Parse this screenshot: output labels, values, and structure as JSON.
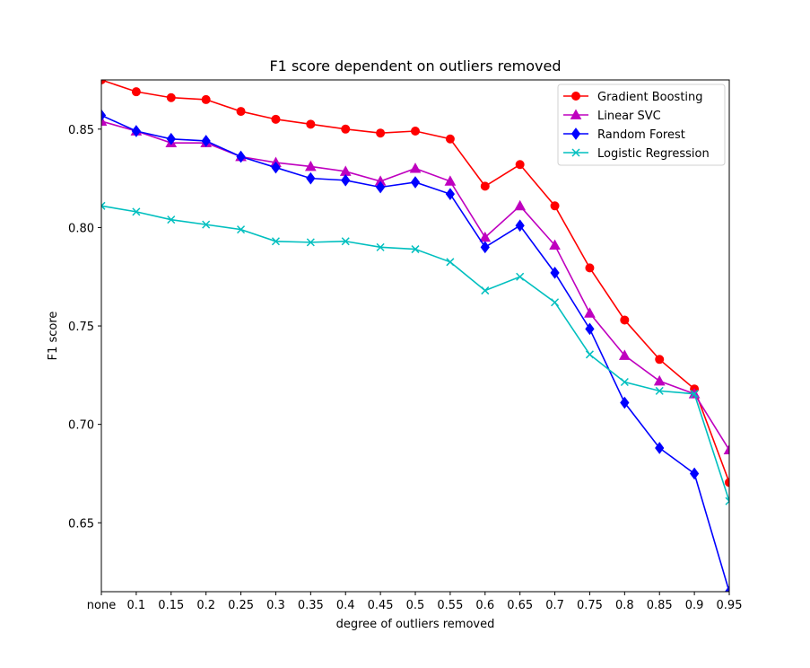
{
  "chart_data": {
    "type": "line",
    "title": "F1 score dependent on outliers removed",
    "xlabel": "degree of outliers removed",
    "ylabel": "F1 score",
    "categories": [
      "none",
      "0.1",
      "0.15",
      "0.2",
      "0.25",
      "0.3",
      "0.35",
      "0.4",
      "0.45",
      "0.5",
      "0.55",
      "0.6",
      "0.65",
      "0.7",
      "0.75",
      "0.8",
      "0.85",
      "0.9",
      "0.95"
    ],
    "ylim": [
      0.615,
      0.875
    ],
    "yticks": [
      "0.65",
      "0.70",
      "0.75",
      "0.80",
      "0.85"
    ],
    "ytick_values": [
      0.65,
      0.7,
      0.75,
      0.8,
      0.85
    ],
    "legend_position": "top-right",
    "grid": false,
    "series": [
      {
        "name": "Gradient Boosting",
        "color": "#ff0000",
        "marker": "circle",
        "values": [
          0.875,
          0.869,
          0.866,
          0.865,
          0.859,
          0.855,
          0.8525,
          0.85,
          0.848,
          0.849,
          0.845,
          0.821,
          0.832,
          0.811,
          0.7795,
          0.753,
          0.733,
          0.718,
          0.6705
        ]
      },
      {
        "name": "Linear SVC",
        "color": "#bf00bf",
        "marker": "triangle",
        "values": [
          0.854,
          0.849,
          0.843,
          0.843,
          0.836,
          0.833,
          0.831,
          0.8285,
          0.8235,
          0.83,
          0.8235,
          0.795,
          0.811,
          0.791,
          0.7565,
          0.735,
          0.722,
          0.7155,
          0.687
        ]
      },
      {
        "name": "Random Forest",
        "color": "#0000ff",
        "marker": "diamond",
        "values": [
          0.857,
          0.849,
          0.845,
          0.844,
          0.836,
          0.8305,
          0.825,
          0.824,
          0.8205,
          0.823,
          0.817,
          0.79,
          0.801,
          0.777,
          0.7485,
          0.711,
          0.688,
          0.675,
          0.615
        ]
      },
      {
        "name": "Logistic Regression",
        "color": "#00bfbf",
        "marker": "x",
        "values": [
          0.811,
          0.808,
          0.804,
          0.8015,
          0.799,
          0.793,
          0.7925,
          0.793,
          0.79,
          0.789,
          0.7825,
          0.768,
          0.775,
          0.762,
          0.7355,
          0.7215,
          0.717,
          0.7155,
          0.661
        ]
      }
    ]
  }
}
